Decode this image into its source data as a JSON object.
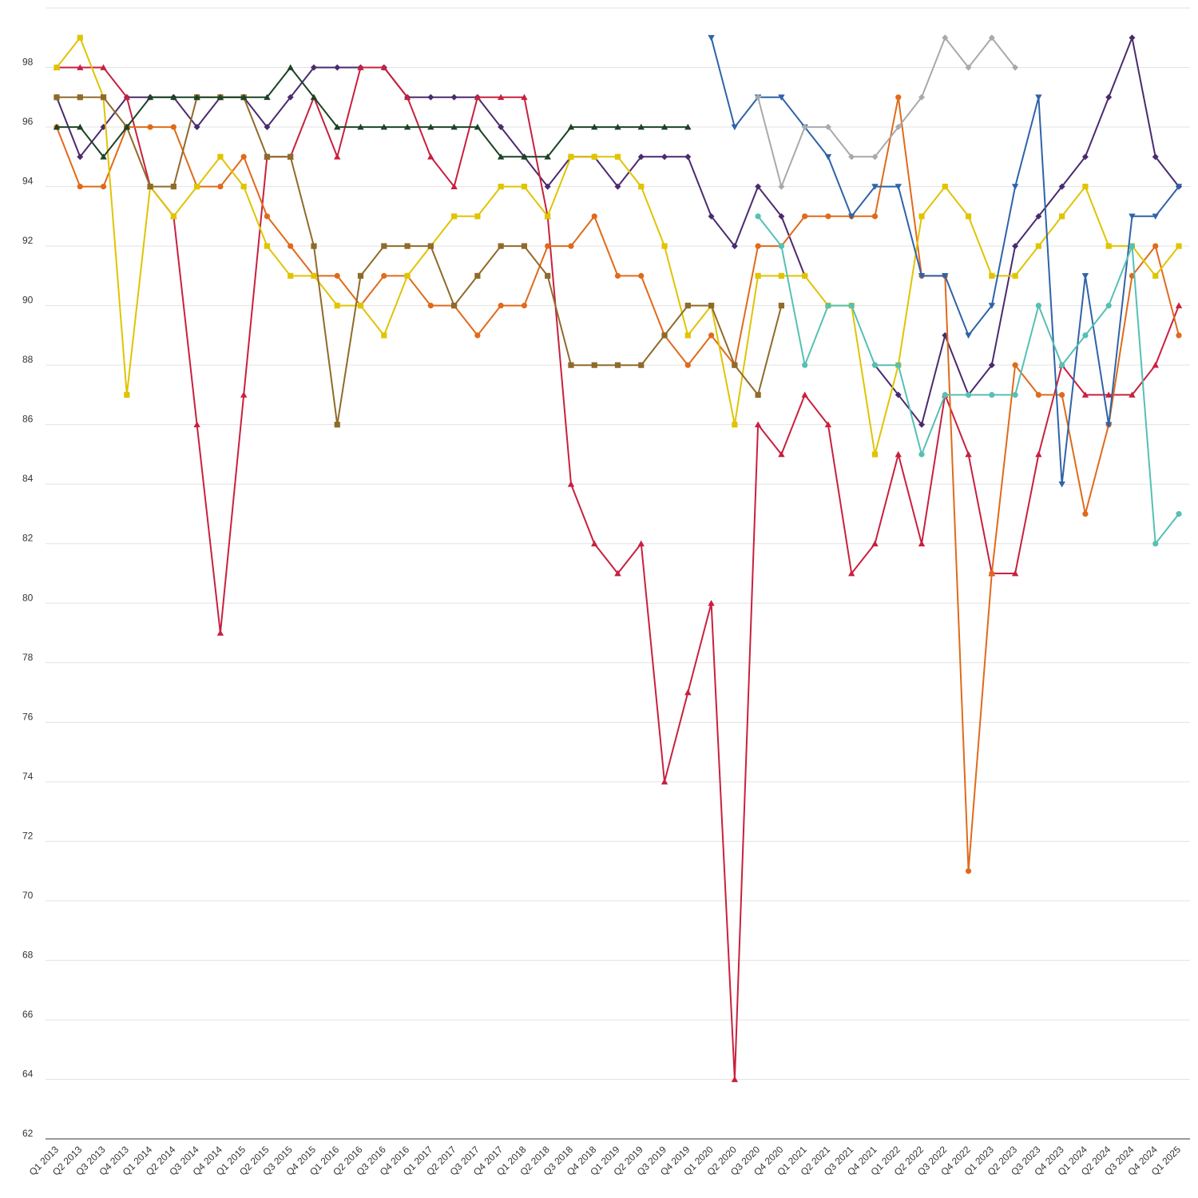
{
  "chart_data": {
    "type": "line",
    "title": "",
    "xlabel": "",
    "ylabel": "",
    "ylim": [
      62,
      100
    ],
    "yticks": [
      62,
      64,
      66,
      68,
      70,
      72,
      74,
      76,
      78,
      80,
      82,
      84,
      86,
      88,
      90,
      92,
      94,
      96,
      98
    ],
    "grid": true,
    "legend": "none",
    "categories": [
      "Q1 2013",
      "Q2 2013",
      "Q3 2013",
      "Q4 2013",
      "Q1 2014",
      "Q2 2014",
      "Q3 2014",
      "Q4 2014",
      "Q1 2015",
      "Q2 2015",
      "Q3 2015",
      "Q4 2015",
      "Q1 2016",
      "Q2 2016",
      "Q3 2016",
      "Q4 2016",
      "Q1 2017",
      "Q2 2017",
      "Q3 2017",
      "Q4 2017",
      "Q1 2018",
      "Q2 2018",
      "Q3 2018",
      "Q4 2018",
      "Q1 2019",
      "Q2 2019",
      "Q3 2019",
      "Q4 2019",
      "Q1 2020",
      "Q2 2020",
      "Q3 2020",
      "Q4 2020",
      "Q1 2021",
      "Q2 2021",
      "Q3 2021",
      "Q4 2021",
      "Q1 2022",
      "Q2 2022",
      "Q3 2022",
      "Q4 2022",
      "Q1 2023",
      "Q2 2023",
      "Q3 2023",
      "Q4 2023",
      "Q1 2024",
      "Q2 2024",
      "Q3 2024",
      "Q4 2024",
      "Q1 2025"
    ],
    "series": [
      {
        "color": "#4b2a6e",
        "marker": "diamond",
        "values": [
          97,
          95,
          96,
          97,
          97,
          97,
          96,
          97,
          97,
          96,
          97,
          98,
          98,
          98,
          98,
          97,
          97,
          97,
          97,
          96,
          95,
          94,
          95,
          95,
          94,
          95,
          95,
          95,
          93,
          92,
          94,
          93,
          91,
          null,
          null,
          88,
          87,
          86,
          89,
          87,
          88,
          92,
          93,
          94,
          95,
          97,
          99,
          95,
          94
        ]
      },
      {
        "color": "#c8203e",
        "marker": "triangle-up",
        "values": [
          98,
          98,
          98,
          97,
          94,
          93,
          86,
          79,
          87,
          95,
          95,
          97,
          95,
          98,
          98,
          97,
          95,
          94,
          97,
          97,
          97,
          93,
          84,
          82,
          81,
          82,
          74,
          77,
          80,
          64,
          86,
          85,
          87,
          86,
          81,
          82,
          85,
          82,
          87,
          85,
          81,
          81,
          85,
          88,
          87,
          87,
          87,
          88,
          90
        ]
      },
      {
        "color": "#e06a1b",
        "marker": "circle",
        "values": [
          96,
          94,
          94,
          96,
          96,
          96,
          94,
          94,
          95,
          93,
          92,
          91,
          91,
          90,
          91,
          91,
          90,
          90,
          89,
          90,
          90,
          92,
          92,
          93,
          91,
          91,
          89,
          88,
          89,
          88,
          92,
          92,
          93,
          93,
          93,
          93,
          97,
          91,
          91,
          71,
          81,
          88,
          87,
          87,
          83,
          86,
          91,
          92,
          89
        ]
      },
      {
        "color": "#e0c400",
        "marker": "square",
        "values": [
          98,
          99,
          97,
          87,
          94,
          93,
          94,
          95,
          94,
          92,
          91,
          91,
          90,
          90,
          89,
          91,
          92,
          93,
          93,
          94,
          94,
          93,
          95,
          95,
          95,
          94,
          92,
          89,
          90,
          86,
          91,
          91,
          91,
          90,
          90,
          85,
          88,
          93,
          94,
          93,
          91,
          91,
          92,
          93,
          94,
          92,
          92,
          91,
          92
        ]
      },
      {
        "color": "#8f6a2a",
        "marker": "square",
        "values": [
          97,
          97,
          97,
          96,
          94,
          94,
          97,
          97,
          97,
          95,
          95,
          92,
          86,
          91,
          92,
          92,
          92,
          90,
          91,
          92,
          92,
          91,
          88,
          88,
          88,
          88,
          89,
          90,
          90,
          88,
          87,
          90,
          null,
          null,
          null,
          null,
          null,
          null,
          null,
          null,
          null,
          null,
          null,
          null,
          null,
          null,
          null,
          null,
          null
        ]
      },
      {
        "color": "#1b4325",
        "marker": "triangle-up",
        "values": [
          96,
          96,
          95,
          96,
          97,
          97,
          97,
          97,
          97,
          97,
          98,
          97,
          96,
          96,
          96,
          96,
          96,
          96,
          96,
          95,
          95,
          95,
          96,
          96,
          96,
          96,
          96,
          96,
          null,
          null,
          null,
          null,
          null,
          null,
          null,
          null,
          null,
          null,
          null,
          null,
          null,
          null,
          null,
          null,
          null,
          null,
          null,
          null,
          null
        ]
      },
      {
        "color": "#2e63a8",
        "marker": "triangle-down",
        "values": [
          null,
          null,
          null,
          null,
          null,
          null,
          null,
          null,
          null,
          null,
          null,
          null,
          null,
          null,
          null,
          null,
          null,
          null,
          null,
          null,
          null,
          null,
          null,
          null,
          null,
          null,
          null,
          null,
          99,
          96,
          97,
          97,
          96,
          95,
          93,
          94,
          94,
          91,
          91,
          89,
          90,
          94,
          97,
          84,
          91,
          86,
          93,
          93,
          94
        ]
      },
      {
        "color": "#a7aaad",
        "marker": "diamond",
        "values": [
          null,
          null,
          null,
          null,
          null,
          null,
          null,
          null,
          null,
          null,
          null,
          null,
          null,
          null,
          null,
          null,
          null,
          null,
          null,
          null,
          null,
          null,
          null,
          null,
          null,
          null,
          null,
          null,
          null,
          null,
          97,
          94,
          96,
          96,
          95,
          95,
          96,
          97,
          99,
          98,
          99,
          98,
          null,
          null,
          null,
          null,
          null,
          null,
          null
        ]
      },
      {
        "color": "#55c0b4",
        "marker": "circle",
        "values": [
          null,
          null,
          null,
          null,
          null,
          null,
          null,
          null,
          null,
          null,
          null,
          null,
          null,
          null,
          null,
          null,
          null,
          null,
          null,
          null,
          null,
          null,
          null,
          null,
          null,
          null,
          null,
          null,
          null,
          null,
          93,
          92,
          88,
          90,
          90,
          88,
          88,
          85,
          87,
          87,
          87,
          87,
          90,
          88,
          89,
          90,
          92,
          82,
          83
        ]
      }
    ]
  }
}
